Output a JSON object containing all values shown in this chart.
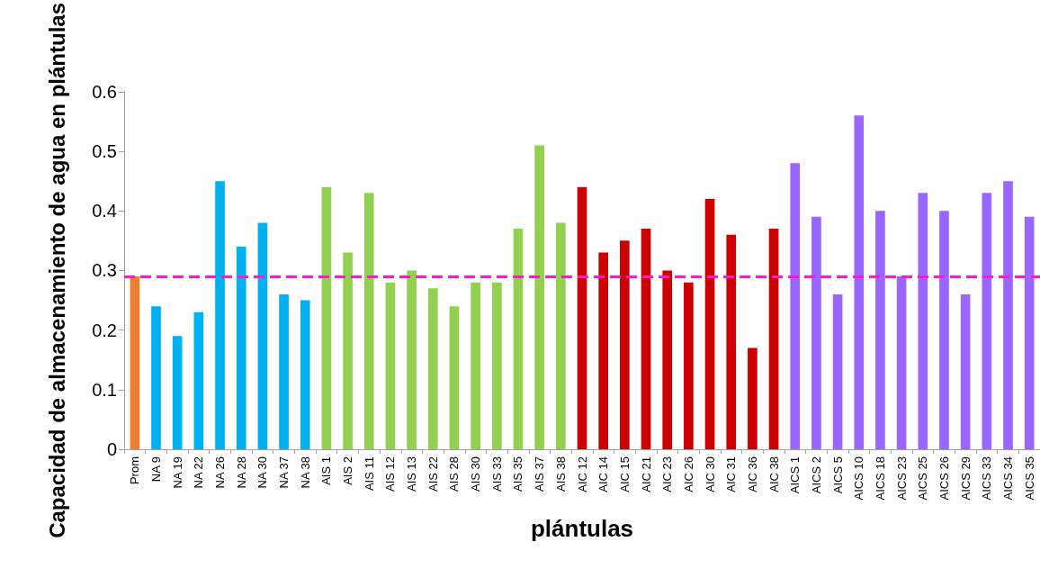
{
  "chart_data": {
    "type": "bar",
    "xlabel": "plántulas",
    "ylabel": "Capacidad de almacenamiento de agua en plántulas",
    "categories": [
      "Prom",
      "NA 9",
      "NA 19",
      "NA 22",
      "NA 26",
      "NA 28",
      "NA 30",
      "NA 37",
      "NA 38",
      "AIS 1",
      "AIS 2",
      "AIS 11",
      "AIS 12",
      "AIS 13",
      "AIS 22",
      "AIS 28",
      "AIS 30",
      "AIS 33",
      "AIS 35",
      "AIS 37",
      "AIS 38",
      "AIC 12",
      "AIC 14",
      "AIC 15",
      "AIC 21",
      "AIC 23",
      "AIC 26",
      "AIC 30",
      "AIC 31",
      "AIC 36",
      "AIC 38",
      "AICS 1",
      "AICS 2",
      "AICS 5",
      "AICS 10",
      "AICS 18",
      "AICS 23",
      "AICS 25",
      "AICS 26",
      "AICS 29",
      "AICS 33",
      "AICS 34",
      "AICS 35"
    ],
    "values": [
      0.29,
      0.24,
      0.19,
      0.23,
      0.45,
      0.34,
      0.38,
      0.26,
      0.25,
      0.44,
      0.33,
      0.43,
      0.28,
      0.3,
      0.27,
      0.24,
      0.28,
      0.28,
      0.37,
      0.51,
      0.38,
      0.44,
      0.33,
      0.35,
      0.37,
      0.3,
      0.28,
      0.42,
      0.36,
      0.17,
      0.37,
      0.48,
      0.39,
      0.26,
      0.56,
      0.4,
      0.29,
      0.43,
      0.4,
      0.26,
      0.43,
      0.45,
      0.39
    ],
    "colors": [
      "#ed7d31",
      "#00b0f0",
      "#00b0f0",
      "#00b0f0",
      "#00b0f0",
      "#00b0f0",
      "#00b0f0",
      "#00b0f0",
      "#00b0f0",
      "#92d050",
      "#92d050",
      "#92d050",
      "#92d050",
      "#92d050",
      "#92d050",
      "#92d050",
      "#92d050",
      "#92d050",
      "#92d050",
      "#92d050",
      "#92d050",
      "#cc0000",
      "#cc0000",
      "#cc0000",
      "#cc0000",
      "#cc0000",
      "#cc0000",
      "#cc0000",
      "#cc0000",
      "#cc0000",
      "#cc0000",
      "#9966ff",
      "#9966ff",
      "#9966ff",
      "#9966ff",
      "#9966ff",
      "#9966ff",
      "#9966ff",
      "#9966ff",
      "#9966ff",
      "#9966ff",
      "#9966ff",
      "#9966ff"
    ],
    "ylim": [
      0,
      0.6
    ],
    "yticks": [
      0,
      0.1,
      0.2,
      0.3,
      0.4,
      0.5,
      0.6
    ],
    "ref_lines": [
      {
        "axis": "y",
        "value": 0.29,
        "color": "#ff19c8",
        "line_style": "dashed"
      }
    ],
    "grid": false
  }
}
